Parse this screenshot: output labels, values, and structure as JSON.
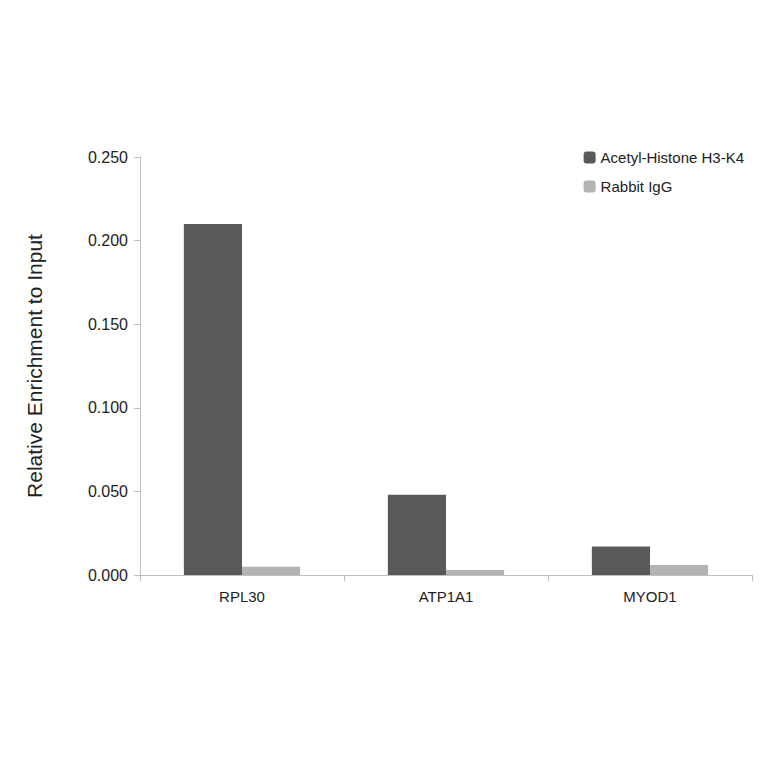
{
  "chart_data": {
    "type": "bar",
    "y_label": "Relative Enrichment to Input",
    "categories": [
      "RPL30",
      "ATP1A1",
      "MYOD1"
    ],
    "series": [
      {
        "name": "Acetyl-Histone H3-K4",
        "color": "#595959",
        "values": [
          0.21,
          0.048,
          0.017
        ]
      },
      {
        "name": "Rabbit IgG",
        "color": "#b3b3b3",
        "values": [
          0.005,
          0.003,
          0.006
        ]
      }
    ],
    "ylim": [
      0,
      0.25
    ],
    "yticks": [
      {
        "value": 0,
        "label": "0.000"
      },
      {
        "value": 0.05,
        "label": "0.050"
      },
      {
        "value": 0.1,
        "label": "0.100"
      },
      {
        "value": 0.15,
        "label": "0.150"
      },
      {
        "value": 0.2,
        "label": "0.200"
      },
      {
        "value": 0.25,
        "label": "0.250"
      }
    ],
    "grid": false,
    "legend": "top-right"
  }
}
